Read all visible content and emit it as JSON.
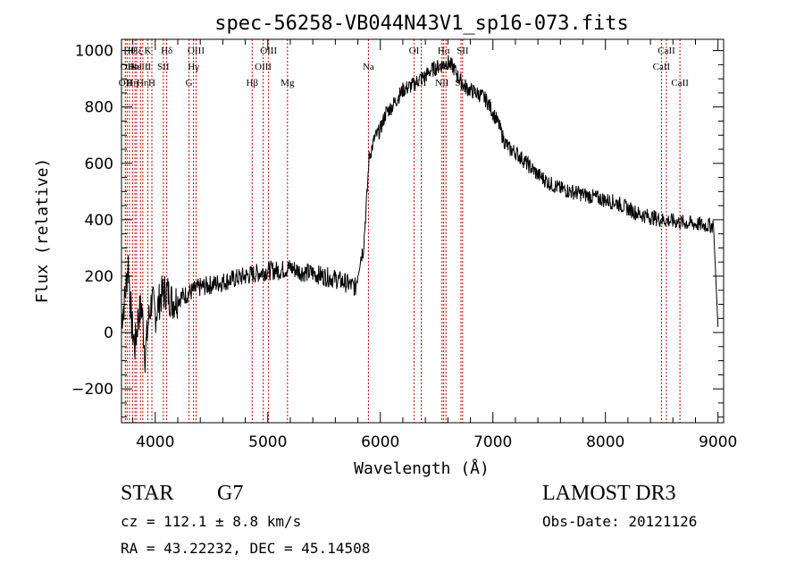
{
  "chart_data": {
    "type": "line",
    "title": "spec-56258-VB044N43V1_sp16-073.fits",
    "xlabel": "Wavelength (Å)",
    "ylabel": "Flux (relative)",
    "xlim": [
      3700,
      9050
    ],
    "ylim": [
      -320,
      1040
    ],
    "xticks": [
      4000,
      5000,
      6000,
      7000,
      8000,
      9000
    ],
    "yticks": [
      -200,
      0,
      200,
      400,
      600,
      800,
      1000
    ],
    "grid": false,
    "series": [
      {
        "name": "spectrum",
        "x": [
          3700,
          3730,
          3760,
          3790,
          3820,
          3850,
          3880,
          3910,
          3940,
          3970,
          4000,
          4050,
          4100,
          4150,
          4200,
          4300,
          4400,
          4500,
          4600,
          4700,
          4800,
          4900,
          5000,
          5100,
          5200,
          5300,
          5400,
          5500,
          5600,
          5700,
          5780,
          5820,
          5850,
          5880,
          5900,
          5950,
          6000,
          6050,
          6100,
          6150,
          6200,
          6250,
          6300,
          6350,
          6400,
          6450,
          6500,
          6550,
          6600,
          6650,
          6700,
          6750,
          6800,
          6850,
          6900,
          6950,
          7000,
          7050,
          7100,
          7150,
          7200,
          7300,
          7400,
          7500,
          7600,
          7700,
          7800,
          7900,
          8000,
          8100,
          8200,
          8300,
          8400,
          8500,
          8600,
          8700,
          8800,
          8900,
          8960,
          9000
        ],
        "y": [
          50,
          120,
          250,
          30,
          -50,
          60,
          90,
          -80,
          40,
          120,
          60,
          130,
          150,
          110,
          120,
          140,
          160,
          170,
          180,
          190,
          200,
          210,
          220,
          220,
          230,
          215,
          210,
          200,
          190,
          175,
          160,
          260,
          300,
          480,
          620,
          690,
          720,
          780,
          800,
          830,
          860,
          870,
          880,
          900,
          910,
          930,
          940,
          950,
          960,
          940,
          900,
          870,
          860,
          850,
          840,
          820,
          780,
          740,
          680,
          650,
          640,
          600,
          560,
          530,
          510,
          500,
          490,
          480,
          470,
          460,
          440,
          420,
          410,
          400,
          395,
          390,
          385,
          380,
          380,
          20
        ]
      }
    ],
    "lines": [
      {
        "wl": 3734,
        "label": "OII",
        "row": 2
      },
      {
        "wl": 3750,
        "label": "OII",
        "row": 1
      },
      {
        "wl": 3771,
        "label": "Hθ",
        "row": 0
      },
      {
        "wl": 3798,
        "label": "Hη",
        "row": 2
      },
      {
        "wl": 3820,
        "label": "HeI",
        "row": 1
      },
      {
        "wl": 3835,
        "label": "Hζ",
        "row": 0
      },
      {
        "wl": 3869,
        "label": "NeIII",
        "row": 1
      },
      {
        "wl": 3889,
        "label": "Hη",
        "row": 2
      },
      {
        "wl": 3934,
        "label": "K",
        "row": 0
      },
      {
        "wl": 3970,
        "label": "H",
        "row": 2
      },
      {
        "wl": 4072,
        "label": "SII",
        "row": 1
      },
      {
        "wl": 4102,
        "label": "Hδ",
        "row": 0
      },
      {
        "wl": 4300,
        "label": "G",
        "row": 2
      },
      {
        "wl": 4340,
        "label": "Hγ",
        "row": 1
      },
      {
        "wl": 4363,
        "label": "OIII",
        "row": 0
      },
      {
        "wl": 4861,
        "label": "Hβ",
        "row": 2
      },
      {
        "wl": 4959,
        "label": "OIII",
        "row": 1
      },
      {
        "wl": 5007,
        "label": "OIII",
        "row": 0
      },
      {
        "wl": 5175,
        "label": "Mg",
        "row": 2
      },
      {
        "wl": 5894,
        "label": "Na",
        "row": 1
      },
      {
        "wl": 6300,
        "label": "OI",
        "row": 0
      },
      {
        "wl": 6363,
        "label": "OI",
        "row": 2
      },
      {
        "wl": 6548,
        "label": "NII",
        "row": 2
      },
      {
        "wl": 6563,
        "label": "Hα",
        "row": 0
      },
      {
        "wl": 6583,
        "label": "NII",
        "row": 1
      },
      {
        "wl": 6716,
        "label": "SII",
        "row": 2
      },
      {
        "wl": 6731,
        "label": "SII",
        "row": 0
      },
      {
        "wl": 8498,
        "label": "CaII",
        "row": 1
      },
      {
        "wl": 8542,
        "label": "CaII",
        "row": 0
      },
      {
        "wl": 8662,
        "label": "CaII",
        "row": 2
      }
    ]
  },
  "info": {
    "object_class": "STAR",
    "subclass": "G7",
    "survey": "LAMOST DR3",
    "cz": "cz = 112.1 ± 8.8 km/s",
    "obs_date": "Obs-Date: 20121126",
    "coords": "RA =  43.22232, DEC =  45.14508"
  },
  "colors": {
    "spectrum": "#000000",
    "line_marker": "#cc0000",
    "axis": "#000000"
  }
}
